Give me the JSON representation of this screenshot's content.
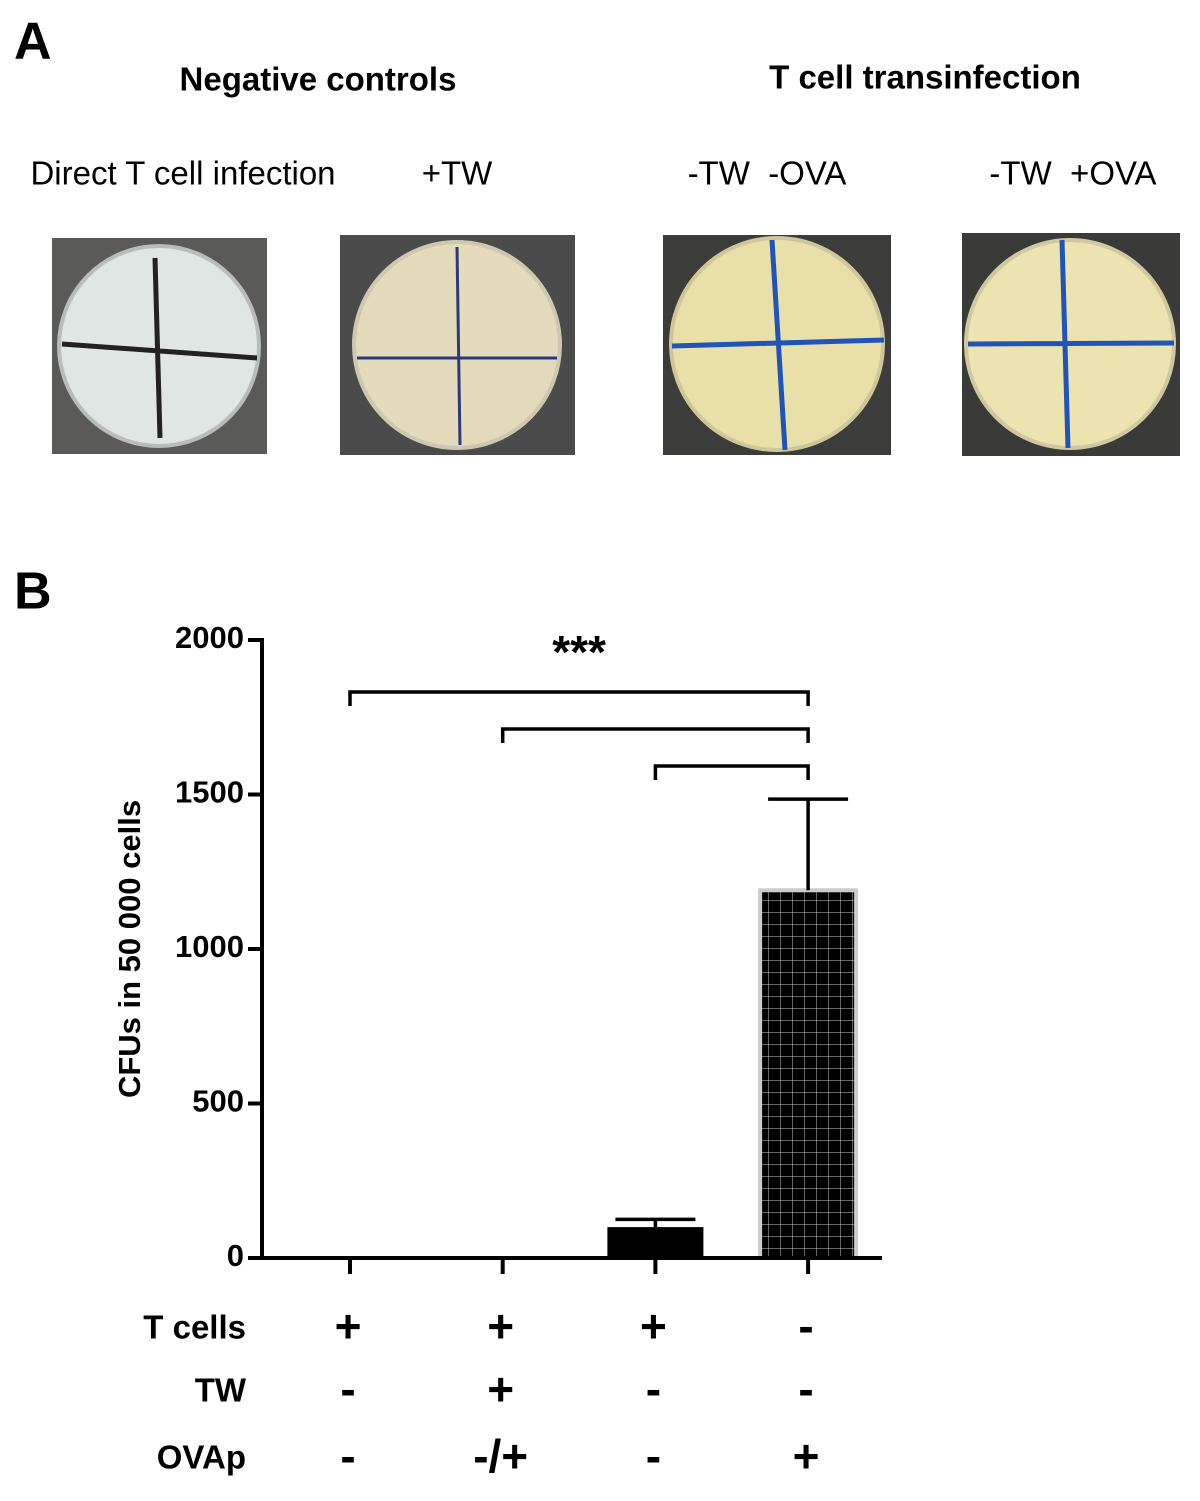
{
  "panel_a": {
    "label": "A",
    "groups": [
      {
        "title": "Negative controls",
        "plates": [
          "Direct T cell infection",
          "+TW"
        ]
      },
      {
        "title": "T cell transinfection",
        "plates": [
          "-TW  -OVA",
          "-TW  +OVA"
        ]
      }
    ]
  },
  "chart_data": {
    "panel_label": "B",
    "type": "bar",
    "ylabel": "CFUs in 50 000 cells",
    "categories": [
      null,
      null,
      null,
      null
    ],
    "values": [
      5,
      0,
      100,
      1190
    ],
    "errors": [
      null,
      null,
      25,
      295
    ],
    "ylim": [
      0,
      2000
    ],
    "yticks": [
      0,
      500,
      1000,
      1500,
      2000
    ],
    "color": "#000000",
    "significance": {
      "label": "***",
      "pairs": [
        [
          0,
          3
        ],
        [
          1,
          3
        ],
        [
          2,
          3
        ]
      ]
    },
    "conditions": [
      {
        "name": "T cells",
        "values": [
          "+",
          "+",
          "+",
          "-"
        ]
      },
      {
        "name": "TW",
        "values": [
          "-",
          "+",
          "-",
          "-"
        ]
      },
      {
        "name": "OVAp",
        "values": [
          "-",
          "-/+",
          "-",
          "+"
        ]
      }
    ]
  }
}
